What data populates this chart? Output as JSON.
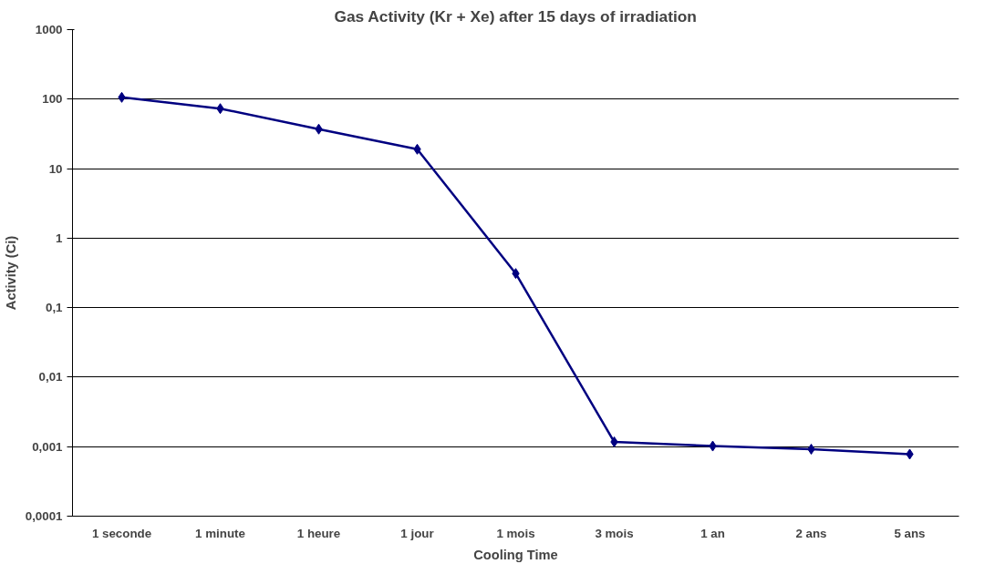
{
  "chart_data": {
    "type": "line",
    "title": "Gas Activity (Kr + Xe) after 15 days of irradiation",
    "xlabel": "Cooling Time",
    "ylabel": "Activity (Ci)",
    "categories": [
      "1 seconde",
      "1 minute",
      "1 heure",
      "1 jour",
      "1 mois",
      "3 mois",
      "1 an",
      "2 ans",
      "5 ans"
    ],
    "series": [
      {
        "color": "#000080",
        "values": [
          106,
          73,
          37,
          19,
          0.31,
          0.00117,
          0.00102,
          0.00092,
          0.00078
        ]
      }
    ],
    "log": true,
    "ylim": [
      0.0001,
      1000
    ],
    "yticks": [
      {
        "value": 0.0001,
        "label": "0,0001"
      },
      {
        "value": 0.001,
        "label": "0,001"
      },
      {
        "value": 0.01,
        "label": "0,01"
      },
      {
        "value": 0.1,
        "label": "0,1"
      },
      1,
      10,
      100,
      1000
    ],
    "grid": "y",
    "marker": "diamond",
    "line_style": "solid"
  }
}
